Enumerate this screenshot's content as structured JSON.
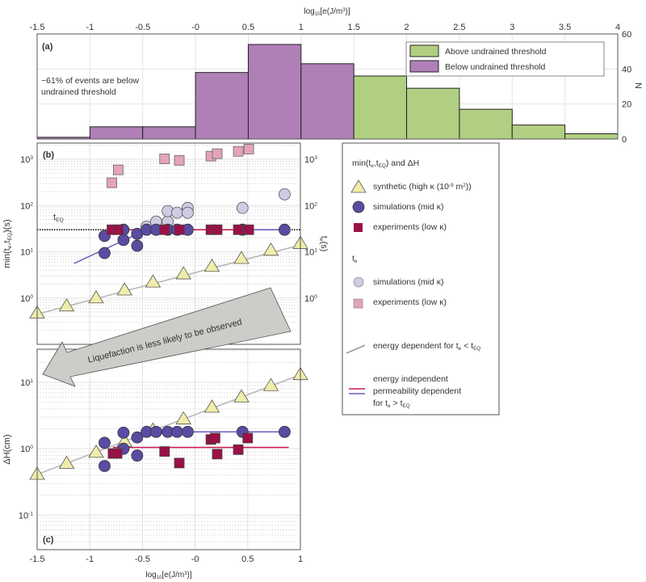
{
  "chart_data": [
    {
      "type": "bar",
      "panel_label": "(a)",
      "title": [
        {
          "t": "log"
        },
        {
          "sub": "10"
        },
        {
          "t": "[e(J/m"
        },
        {
          "sup": "3"
        },
        {
          "t": ")]"
        }
      ],
      "xlim": [
        -1.5,
        4
      ],
      "xticks": [
        -1.5,
        -1,
        -0.5,
        0,
        0.5,
        1,
        1.5,
        2,
        2.5,
        3,
        3.5,
        4
      ],
      "xtick_labels": [
        "-1.5",
        "-1",
        "-0.5",
        "-0",
        "0.5",
        "1",
        "1.5",
        "2",
        "2.5",
        "3",
        "3.5",
        "4"
      ],
      "ylim": [
        0,
        60
      ],
      "yticks": [
        0,
        20,
        40,
        60
      ],
      "ytick_labels": [
        "0",
        "20",
        "40",
        "60"
      ],
      "ylabel": "N",
      "bin_edges": [
        -1.5,
        -1,
        -0.5,
        0,
        0.5,
        1,
        1.5,
        2,
        2.5,
        3,
        3.5,
        4
      ],
      "series": [
        {
          "name": "Below undrained threshold",
          "color": "#b07fb8",
          "values": [
            1,
            7,
            7,
            38,
            54,
            43,
            null,
            null,
            null,
            null,
            null
          ]
        },
        {
          "name": "Above undrained threshold",
          "color": "#b1cf82",
          "values": [
            null,
            null,
            null,
            null,
            null,
            null,
            36,
            29,
            17,
            8,
            3
          ]
        }
      ],
      "legend": [
        "Above undrained threshold",
        "Below undrained threshold"
      ],
      "annotation": [
        "~61% of events are below",
        "undrained threshold"
      ]
    },
    {
      "type": "scatter",
      "panel_label": "(b)",
      "ylabel": [
        {
          "t": "min(t"
        },
        {
          "sub": "e"
        },
        {
          "t": ",t"
        },
        {
          "sub": "EQ"
        },
        {
          "t": ")(s)"
        }
      ],
      "ylabel_right": [
        {
          "t": "t"
        },
        {
          "sub": "e"
        },
        {
          "t": "(s)"
        }
      ],
      "xlim": [
        -1.5,
        1
      ],
      "xticks": [
        -1.5,
        -1,
        -0.5,
        0,
        0.5,
        1
      ],
      "yscale": "log",
      "ylim_log10": [
        -1,
        3.35
      ],
      "ytick_exponents": [
        "0",
        "1",
        "2",
        "3"
      ],
      "teq_label": [
        {
          "t": "t"
        },
        {
          "sub": "EQ"
        }
      ],
      "teq": 30,
      "series": [
        {
          "name": "synthetic",
          "marker": "triangle",
          "x": [
            -1.5,
            -1.22,
            -0.94,
            -0.67,
            -0.4,
            -0.11,
            0.16,
            0.44,
            0.72,
            1.0
          ],
          "y": [
            0.47,
            0.67,
            1.0,
            1.48,
            2.2,
            3.3,
            4.8,
            7.1,
            10.7,
            15
          ]
        },
        {
          "name": "simulations min",
          "marker": "circle-dark",
          "x": [
            -0.86,
            -0.86,
            -0.68,
            -0.68,
            -0.55,
            -0.55,
            -0.46,
            -0.37,
            -0.26,
            -0.17,
            -0.07,
            0.45,
            0.85
          ],
          "y": [
            22,
            9.4,
            30,
            18,
            24.5,
            13.5,
            30,
            30,
            30,
            30,
            30,
            30,
            30
          ]
        },
        {
          "name": "experiments min",
          "marker": "square-dark",
          "x": [
            -0.79,
            -0.73,
            -0.29,
            -0.15,
            0.15,
            0.21,
            0.41,
            0.51
          ],
          "y": [
            30,
            30,
            30,
            30,
            30,
            30,
            30,
            30
          ]
        },
        {
          "name": "simulations te",
          "marker": "circle-light",
          "x": [
            -0.46,
            -0.37,
            -0.26,
            -0.26,
            -0.17,
            -0.07,
            -0.07,
            0.45,
            0.85
          ],
          "y": [
            35,
            45,
            45,
            76,
            70,
            89,
            70,
            89,
            175
          ]
        },
        {
          "name": "experiments te",
          "marker": "square-light",
          "x": [
            -0.79,
            -0.73,
            -0.29,
            -0.15,
            0.15,
            0.21,
            0.41,
            0.51
          ],
          "y": [
            310,
            590,
            1020,
            950,
            1170,
            1320,
            1480,
            1660
          ]
        }
      ],
      "lines": [
        {
          "name": "energy dependent",
          "color": "#b4b4b4",
          "x": [
            -1.5,
            1.0
          ],
          "y": [
            0.45,
            14
          ]
        },
        {
          "name": "sim permeability dependent",
          "color": "#6a5cc0",
          "x": [
            -1.15,
            -0.46,
            0.85
          ],
          "y": [
            5.6,
            30,
            30
          ]
        },
        {
          "name": "exp permeability dependent",
          "color": "#c8174e",
          "x": [
            -0.78,
            0.5
          ],
          "y": [
            30,
            30
          ]
        }
      ]
    },
    {
      "type": "scatter",
      "panel_label": "(c)",
      "ylabel": [
        {
          "t": "ΔH(cm)"
        }
      ],
      "xlabel": [
        {
          "t": "log"
        },
        {
          "sub": "10"
        },
        {
          "t": "[e(J/m"
        },
        {
          "sup": "3"
        },
        {
          "t": ")]"
        }
      ],
      "xlim": [
        -1.5,
        1
      ],
      "xticks": [
        -1.5,
        -1,
        -0.5,
        0,
        0.5,
        1
      ],
      "xtick_labels": [
        "-1.5",
        "-1",
        "-0.5",
        "-0",
        "0.5",
        "1"
      ],
      "yscale": "log",
      "ylim_log10": [
        -1.52,
        1.5
      ],
      "ytick_exponents": [
        "-1",
        "0",
        "1"
      ],
      "series": [
        {
          "name": "synthetic",
          "marker": "triangle",
          "x": [
            -1.5,
            -1.22,
            -0.94,
            -0.67,
            -0.4,
            -0.11,
            0.16,
            0.44,
            0.72,
            1.0
          ],
          "y": [
            0.41,
            0.6,
            0.88,
            1.28,
            1.9,
            2.8,
            4.2,
            6,
            8.9,
            13
          ]
        },
        {
          "name": "simulations",
          "marker": "circle-dark",
          "x": [
            -0.86,
            -0.86,
            -0.68,
            -0.68,
            -0.55,
            -0.55,
            -0.46,
            -0.37,
            -0.26,
            -0.17,
            -0.07,
            0.45,
            0.85
          ],
          "y": [
            1.23,
            0.55,
            1.75,
            1.0,
            1.48,
            0.79,
            1.8,
            1.8,
            1.8,
            1.8,
            1.8,
            1.8,
            1.8
          ]
        },
        {
          "name": "experiments",
          "marker": "square-dark",
          "x": [
            -0.78,
            -0.74,
            -0.29,
            -0.15,
            0.15,
            0.19,
            0.21,
            0.41,
            0.5
          ],
          "y": [
            0.85,
            0.85,
            0.91,
            0.61,
            1.38,
            1.45,
            0.83,
            0.97,
            1.45
          ]
        }
      ],
      "lines": [
        {
          "name": "energy dependent",
          "color": "#b4b4b4",
          "x": [
            -1.5,
            1.0
          ],
          "y": [
            0.41,
            13
          ]
        },
        {
          "name": "sim permeability dependent",
          "color": "#6a5cc0",
          "x": [
            -0.03,
            0.89
          ],
          "y": [
            1.8,
            1.8
          ]
        },
        {
          "name": "exp permeability dependent",
          "color": "#c8174e",
          "x": [
            -0.78,
            0.89
          ],
          "y": [
            1.05,
            1.05
          ]
        }
      ]
    }
  ],
  "arrow_text": "Liquefaction is less likely to be observed",
  "legend": {
    "title1": [
      {
        "t": "min(t"
      },
      {
        "sub": "e"
      },
      {
        "t": ",t"
      },
      {
        "sub": "EQ"
      },
      {
        "t": ") and ΔH"
      }
    ],
    "synthetic": [
      {
        "t": "synthetic (high κ (10"
      },
      {
        "sup": "-9"
      },
      {
        "t": " m"
      },
      {
        "sup": "2"
      },
      {
        "t": "))"
      }
    ],
    "sim_mid": [
      {
        "t": "simulations (mid κ)"
      }
    ],
    "exp_low": [
      {
        "t": "experiments (low κ)"
      }
    ],
    "title2": [
      {
        "t": "t"
      },
      {
        "sub": "e"
      }
    ],
    "sim_mid2": [
      {
        "t": "simulations (mid κ)"
      }
    ],
    "exp_low2": [
      {
        "t": "experiments (low κ)"
      }
    ],
    "energy_dep": [
      {
        "t": "energy dependent for t"
      },
      {
        "sub": "e"
      },
      {
        "t": " < t"
      },
      {
        "sub": "EQ"
      }
    ],
    "energy_indep": [
      [
        {
          "t": "energy independent"
        }
      ],
      [
        {
          "t": "permeability dependent"
        }
      ],
      [
        {
          "t": "for t"
        },
        {
          "sub": "e"
        },
        {
          "t": " > t"
        },
        {
          "sub": "EQ"
        }
      ]
    ]
  },
  "colors": {
    "triangle_fill": "#efedaa",
    "circle_dark": "#5a4ba3",
    "circle_light": "#cfcbe5",
    "square_dark": "#9b1046",
    "square_light": "#e4a3bb",
    "arrow": "#cbcdc8"
  }
}
